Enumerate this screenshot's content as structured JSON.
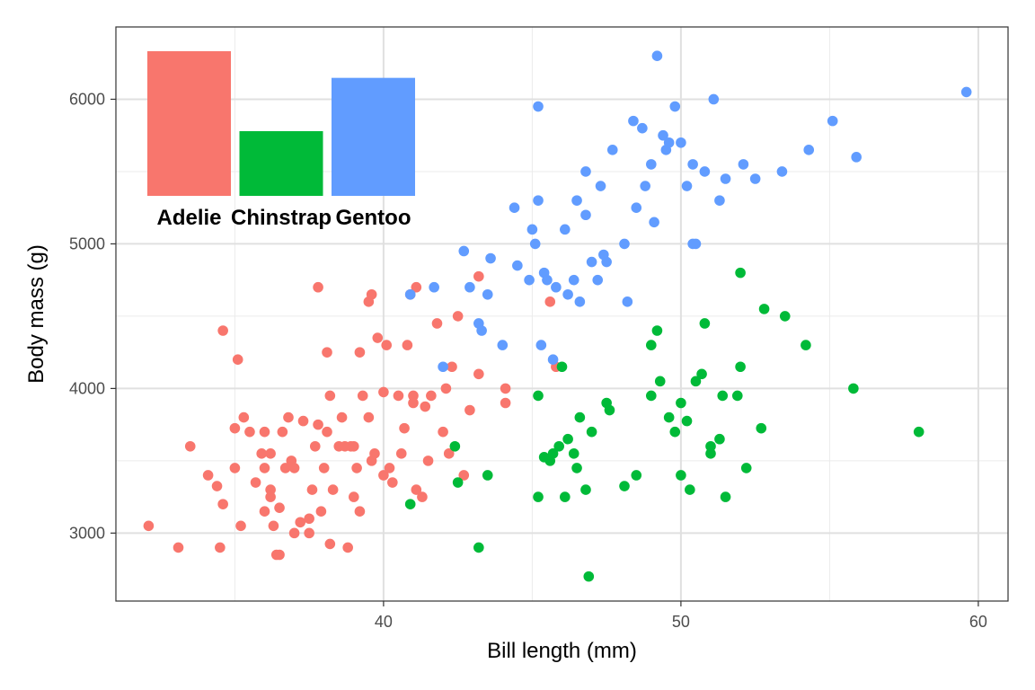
{
  "colors": {
    "adelie": "#F8766D",
    "chinstrap": "#00BA38",
    "gentoo": "#619CFF"
  },
  "chart_data": {
    "type": "scatter",
    "title": "",
    "xlabel": "Bill length (mm)",
    "ylabel": "Body mass (g)",
    "xlim": [
      31.0,
      61.0
    ],
    "ylim": [
      2530,
      6500
    ],
    "x_ticks": [
      40,
      50,
      60
    ],
    "y_ticks": [
      3000,
      4000,
      5000,
      6000
    ],
    "grid": true,
    "series": [
      {
        "key": "adelie",
        "points": [
          [
            32.1,
            3050
          ],
          [
            33.1,
            2900
          ],
          [
            33.5,
            3600
          ],
          [
            34.1,
            3400
          ],
          [
            34.4,
            3325
          ],
          [
            34.5,
            2900
          ],
          [
            34.6,
            3200
          ],
          [
            34.6,
            4400
          ],
          [
            35.0,
            3450
          ],
          [
            35.1,
            4200
          ],
          [
            35.2,
            3050
          ],
          [
            35.3,
            3800
          ],
          [
            35.5,
            3700
          ],
          [
            35.7,
            3350
          ],
          [
            35.9,
            3550
          ],
          [
            35.0,
            3725
          ],
          [
            36.0,
            3150
          ],
          [
            36.0,
            3450
          ],
          [
            36.2,
            3300
          ],
          [
            36.2,
            3550
          ],
          [
            36.3,
            3050
          ],
          [
            36.4,
            2850
          ],
          [
            36.5,
            2850
          ],
          [
            36.5,
            3175
          ],
          [
            36.6,
            3700
          ],
          [
            36.7,
            3450
          ],
          [
            36.8,
            3800
          ],
          [
            36.9,
            3500
          ],
          [
            37.0,
            3450
          ],
          [
            37.2,
            3075
          ],
          [
            37.3,
            3775
          ],
          [
            37.5,
            3000
          ],
          [
            37.6,
            3300
          ],
          [
            37.7,
            3600
          ],
          [
            37.8,
            3750
          ],
          [
            37.8,
            4700
          ],
          [
            37.9,
            3150
          ],
          [
            38.1,
            3700
          ],
          [
            38.1,
            4250
          ],
          [
            38.2,
            3950
          ],
          [
            38.2,
            2925
          ],
          [
            38.3,
            3300
          ],
          [
            38.5,
            3600
          ],
          [
            38.6,
            3800
          ],
          [
            38.7,
            3600
          ],
          [
            38.8,
            2900
          ],
          [
            38.9,
            3600
          ],
          [
            39.0,
            3600
          ],
          [
            39.1,
            3450
          ],
          [
            39.2,
            3150
          ],
          [
            39.2,
            4250
          ],
          [
            39.3,
            3950
          ],
          [
            39.5,
            3800
          ],
          [
            39.5,
            4600
          ],
          [
            39.6,
            3500
          ],
          [
            39.6,
            4650
          ],
          [
            39.7,
            3550
          ],
          [
            39.8,
            4350
          ],
          [
            40.0,
            3975
          ],
          [
            40.1,
            4300
          ],
          [
            40.2,
            3450
          ],
          [
            40.3,
            3350
          ],
          [
            40.5,
            3950
          ],
          [
            40.6,
            3550
          ],
          [
            40.7,
            3725
          ],
          [
            40.8,
            4300
          ],
          [
            40.9,
            4650
          ],
          [
            41.0,
            3950
          ],
          [
            41.1,
            3300
          ],
          [
            41.1,
            4700
          ],
          [
            41.3,
            3250
          ],
          [
            41.4,
            3875
          ],
          [
            41.5,
            3500
          ],
          [
            41.6,
            3950
          ],
          [
            41.8,
            4450
          ],
          [
            42.0,
            3700
          ],
          [
            42.1,
            4000
          ],
          [
            42.2,
            3550
          ],
          [
            42.3,
            4150
          ],
          [
            42.5,
            4500
          ],
          [
            42.7,
            3400
          ],
          [
            42.9,
            3850
          ],
          [
            43.2,
            4775
          ],
          [
            43.2,
            4100
          ],
          [
            44.1,
            4000
          ],
          [
            44.1,
            3900
          ],
          [
            45.6,
            4600
          ],
          [
            45.8,
            4150
          ],
          [
            36.0,
            3700
          ],
          [
            37.0,
            3000
          ],
          [
            38.0,
            3450
          ],
          [
            39.0,
            3250
          ],
          [
            40.0,
            3400
          ],
          [
            41.0,
            3900
          ],
          [
            37.5,
            3100
          ],
          [
            36.2,
            3250
          ]
        ]
      },
      {
        "key": "chinstrap",
        "points": [
          [
            40.9,
            3200
          ],
          [
            42.4,
            3600
          ],
          [
            42.5,
            3350
          ],
          [
            43.2,
            2900
          ],
          [
            43.5,
            3400
          ],
          [
            45.2,
            3250
          ],
          [
            45.2,
            3950
          ],
          [
            45.4,
            3525
          ],
          [
            45.6,
            3500
          ],
          [
            45.7,
            3550
          ],
          [
            45.9,
            3600
          ],
          [
            46.0,
            4150
          ],
          [
            46.1,
            3250
          ],
          [
            46.2,
            3650
          ],
          [
            46.4,
            3550
          ],
          [
            46.5,
            3450
          ],
          [
            46.6,
            3800
          ],
          [
            46.8,
            3300
          ],
          [
            46.9,
            2700
          ],
          [
            47.0,
            3700
          ],
          [
            47.5,
            3900
          ],
          [
            47.6,
            3850
          ],
          [
            48.1,
            3325
          ],
          [
            48.5,
            3400
          ],
          [
            49.0,
            3950
          ],
          [
            49.2,
            4400
          ],
          [
            49.3,
            4050
          ],
          [
            49.6,
            3800
          ],
          [
            49.8,
            3700
          ],
          [
            50.0,
            3900
          ],
          [
            50.2,
            3775
          ],
          [
            50.3,
            3300
          ],
          [
            50.5,
            4050
          ],
          [
            50.7,
            4100
          ],
          [
            50.8,
            4450
          ],
          [
            51.0,
            3550
          ],
          [
            51.3,
            3650
          ],
          [
            51.4,
            3950
          ],
          [
            51.5,
            3250
          ],
          [
            51.9,
            3950
          ],
          [
            52.0,
            4150
          ],
          [
            52.0,
            4800
          ],
          [
            52.2,
            3450
          ],
          [
            52.7,
            3725
          ],
          [
            52.8,
            4550
          ],
          [
            53.5,
            4500
          ],
          [
            54.2,
            4300
          ],
          [
            55.8,
            4000
          ],
          [
            58.0,
            3700
          ],
          [
            49.0,
            4300
          ],
          [
            50.0,
            3400
          ],
          [
            51.0,
            3600
          ]
        ]
      },
      {
        "key": "gentoo",
        "points": [
          [
            40.9,
            4650
          ],
          [
            41.7,
            4700
          ],
          [
            42.0,
            4150
          ],
          [
            42.7,
            4950
          ],
          [
            42.9,
            4700
          ],
          [
            43.2,
            4450
          ],
          [
            43.3,
            4400
          ],
          [
            43.5,
            4650
          ],
          [
            43.6,
            4900
          ],
          [
            44.0,
            4300
          ],
          [
            44.4,
            5250
          ],
          [
            44.5,
            4850
          ],
          [
            44.9,
            4750
          ],
          [
            45.0,
            5100
          ],
          [
            45.1,
            5000
          ],
          [
            45.2,
            5300
          ],
          [
            45.2,
            5950
          ],
          [
            45.3,
            4300
          ],
          [
            45.4,
            4800
          ],
          [
            45.5,
            4750
          ],
          [
            45.7,
            4200
          ],
          [
            45.8,
            4700
          ],
          [
            46.1,
            5100
          ],
          [
            46.2,
            4650
          ],
          [
            46.4,
            4750
          ],
          [
            46.5,
            5300
          ],
          [
            46.6,
            4600
          ],
          [
            46.8,
            5200
          ],
          [
            47.0,
            4875
          ],
          [
            47.2,
            4750
          ],
          [
            47.3,
            5400
          ],
          [
            47.5,
            4875
          ],
          [
            47.7,
            5650
          ],
          [
            48.1,
            5000
          ],
          [
            48.2,
            4600
          ],
          [
            48.4,
            5850
          ],
          [
            48.5,
            5250
          ],
          [
            48.7,
            5800
          ],
          [
            49.0,
            5550
          ],
          [
            49.1,
            5150
          ],
          [
            49.2,
            6300
          ],
          [
            49.4,
            5750
          ],
          [
            49.5,
            5650
          ],
          [
            49.8,
            5950
          ],
          [
            50.0,
            5700
          ],
          [
            50.2,
            5400
          ],
          [
            50.4,
            5550
          ],
          [
            50.5,
            5000
          ],
          [
            50.8,
            5500
          ],
          [
            51.1,
            6000
          ],
          [
            51.3,
            5300
          ],
          [
            51.5,
            5450
          ],
          [
            52.1,
            5550
          ],
          [
            52.5,
            5450
          ],
          [
            53.4,
            5500
          ],
          [
            54.3,
            5650
          ],
          [
            55.1,
            5850
          ],
          [
            55.9,
            5600
          ],
          [
            59.6,
            6050
          ],
          [
            46.8,
            5500
          ],
          [
            47.4,
            4925
          ],
          [
            48.8,
            5400
          ],
          [
            49.6,
            5700
          ],
          [
            50.4,
            5000
          ]
        ]
      }
    ],
    "inset": {
      "type": "bar",
      "categories": [
        "Adelie",
        "Chinstrap",
        "Gentoo"
      ],
      "keys": [
        "adelie",
        "chinstrap",
        "gentoo"
      ],
      "values": [
        152,
        68,
        124
      ]
    }
  }
}
